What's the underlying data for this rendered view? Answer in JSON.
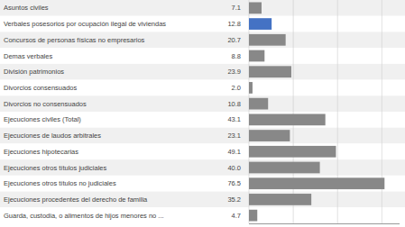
{
  "chart_data": {
    "type": "bar",
    "orientation": "horizontal",
    "categories": [
      "Asuntos civiles",
      "Verbales posesorios por ocupación ilegal de viviendas",
      "Concursos de personas físicas no empresarios",
      "Demas verbales",
      "División patrimonios",
      "Divorcios consensuados",
      "Divorcios no consensuados",
      "Ejecuciones civiles (Total)",
      "Ejecuciones de laudos arbitrales",
      "Ejecuciones hipotecarias",
      "Ejecuciones otros títulos judiciales",
      "Ejecuciones otros títulos no judiciales",
      "Ejecuciones procedentes del derecho de familia",
      "Guarda, custodia, o alimentos de hijos menores no ..."
    ],
    "values": [
      7.1,
      12.8,
      20.7,
      8.8,
      23.9,
      2.0,
      10.8,
      43.1,
      23.1,
      49.1,
      40.0,
      76.5,
      35.2,
      4.7
    ],
    "value_labels": [
      "7.1",
      "12.8",
      "20.7",
      "8.8",
      "23.9",
      "2.0",
      "10.8",
      "43.1",
      "23.1",
      "49.1",
      "40.0",
      "76.5",
      "35.2",
      "4.7"
    ],
    "colors": [
      "#888888",
      "#4472c4",
      "#888888",
      "#888888",
      "#888888",
      "#888888",
      "#888888",
      "#888888",
      "#888888",
      "#888888",
      "#888888",
      "#888888",
      "#888888",
      "#888888"
    ],
    "xlim": [
      0,
      85
    ],
    "xticks": [
      0,
      25,
      50,
      75
    ],
    "grid": true,
    "tick_labels": false,
    "data_labels": true
  }
}
